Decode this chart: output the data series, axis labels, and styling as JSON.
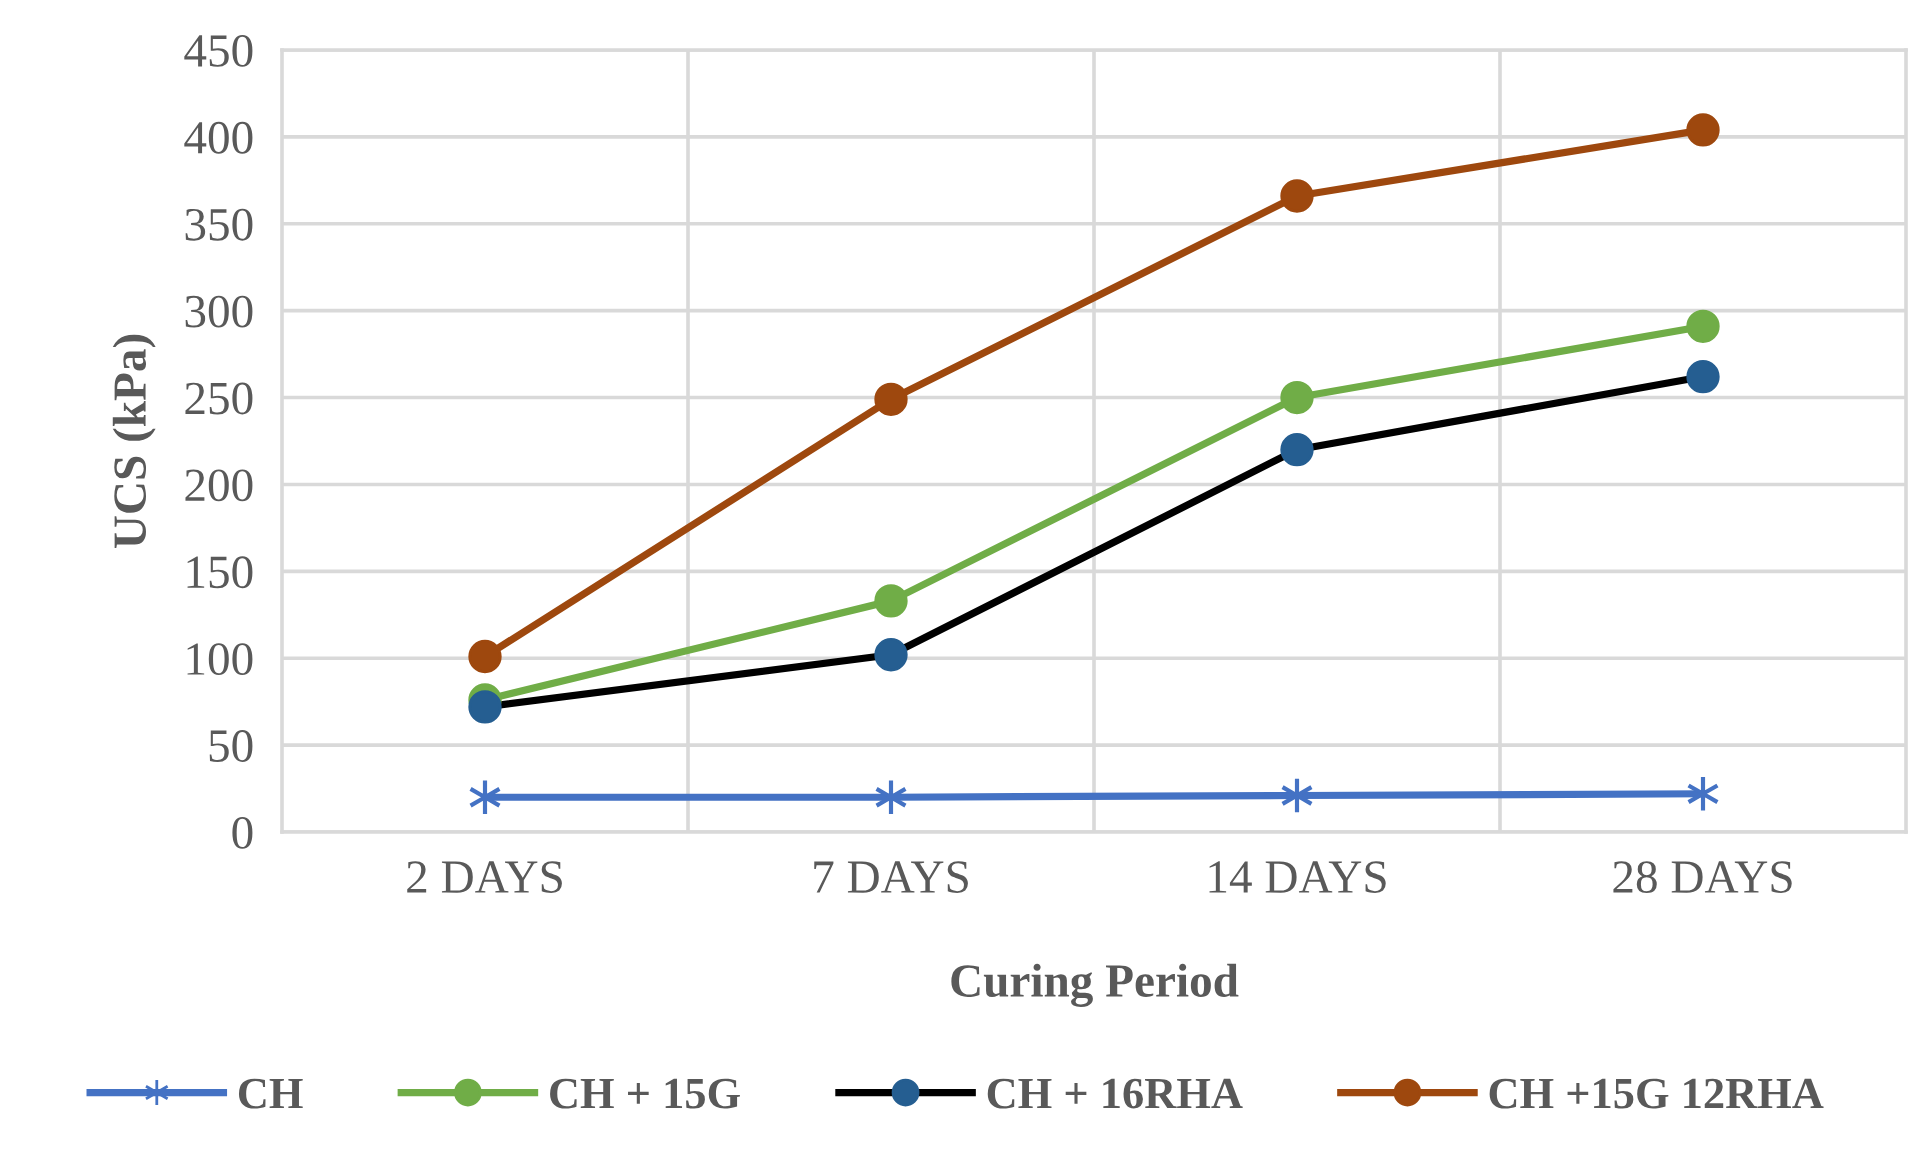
{
  "chart_data": {
    "type": "line",
    "xlabel": "Curing Period",
    "ylabel": "UCS (kPa)",
    "categories": [
      "2 DAYS",
      "7 DAYS",
      "14 DAYS",
      "28 DAYS"
    ],
    "series": [
      {
        "name": "CH",
        "color": "#4472c4",
        "marker": "cross",
        "values": [
          20,
          20,
          21,
          22
        ]
      },
      {
        "name": "CH + 15G",
        "color": "#70ad47",
        "marker": "circle",
        "values": [
          76,
          133,
          250,
          291
        ]
      },
      {
        "name": "CH + 16RHA",
        "color": "#000000",
        "colors": [
          "#255e91",
          "#255e91",
          "#255e91",
          "#255e91"
        ],
        "marker": "circle",
        "values": [
          72,
          102,
          220,
          262
        ]
      },
      {
        "name": "CH +15G 12RHA",
        "color": "#9e480e",
        "marker": "circle",
        "values": [
          101,
          249,
          366,
          404
        ]
      }
    ],
    "ylim": [
      0,
      450
    ],
    "yticks": [
      0,
      50,
      100,
      150,
      200,
      250,
      300,
      350,
      400,
      450
    ],
    "grid": true,
    "legend": "bottom",
    "line_style": "solid"
  }
}
